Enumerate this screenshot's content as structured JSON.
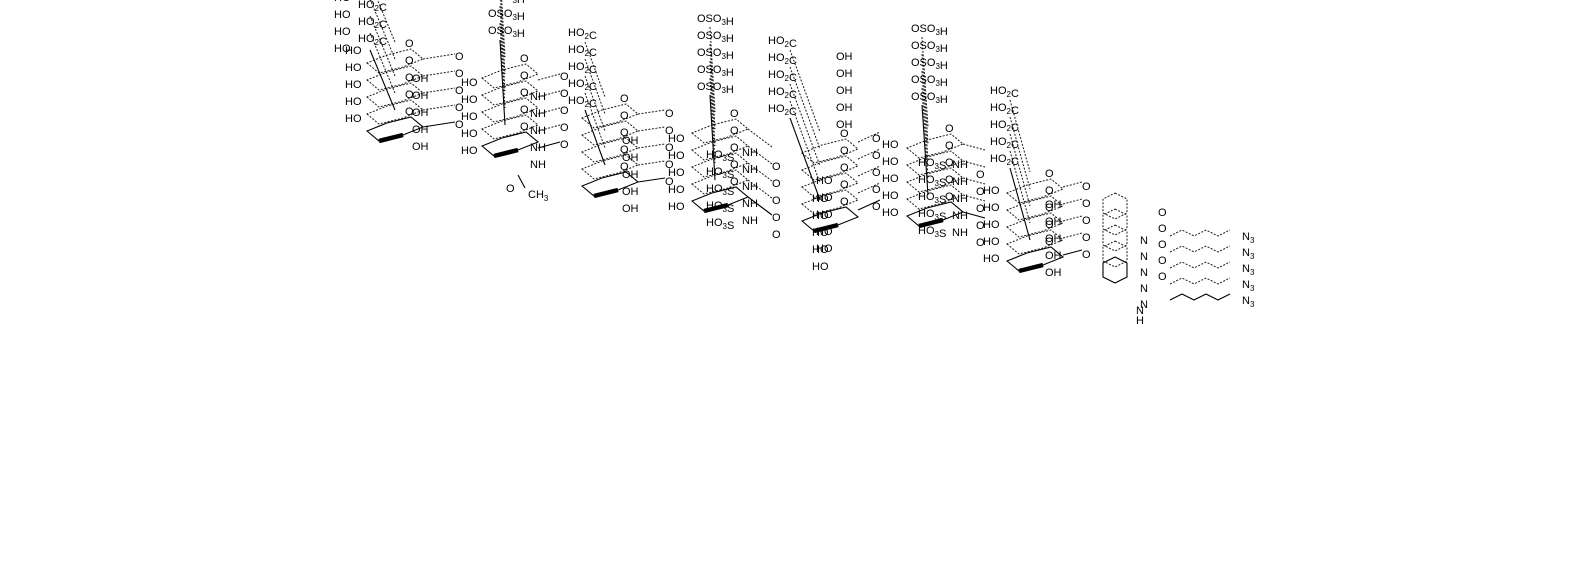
{
  "labels": {
    "hooc": "HO2C",
    "ho": "HO",
    "oh": "OH",
    "o": "O",
    "oso3h": "OSO3H",
    "nh": "NH",
    "hn": "HN",
    "ho3s": "HO3S",
    "ch3": "CH3",
    "n": "N",
    "n3": "N3",
    "h": "H"
  },
  "repeat_count": 5,
  "colors": {
    "ink": "#000000",
    "background": "#ffffff"
  }
}
